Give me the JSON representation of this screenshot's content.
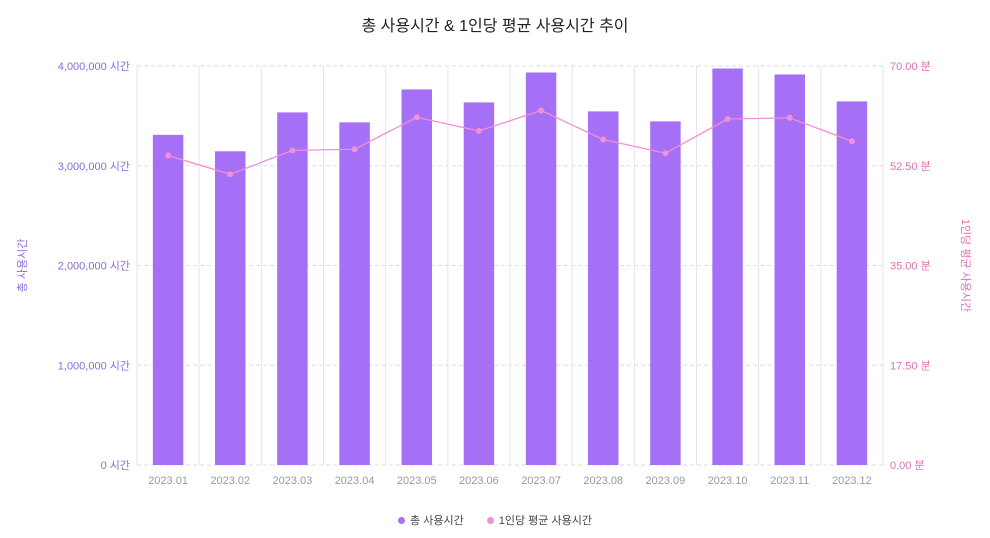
{
  "chart_data": {
    "type": "bar",
    "title": "총 사용시간 & 1인당 평균 사용시간 추이",
    "categories": [
      "2023.01",
      "2023.02",
      "2023.03",
      "2023.04",
      "2023.05",
      "2023.06",
      "2023.07",
      "2023.08",
      "2023.09",
      "2023.10",
      "2023.11",
      "2023.12"
    ],
    "series": [
      {
        "name": "총 사용시간",
        "type": "bar",
        "axis": "left",
        "color": "#a570f5",
        "values": [
          3310000,
          3145000,
          3535000,
          3435000,
          3765000,
          3635000,
          3935000,
          3545000,
          3445000,
          3975000,
          3915000,
          3645000
        ]
      },
      {
        "name": "1인당 평균 사용시간",
        "type": "line",
        "axis": "right",
        "color": "#f28fd6",
        "values": [
          54.3,
          51.0,
          55.2,
          55.4,
          61.0,
          58.6,
          62.2,
          57.1,
          54.7,
          60.7,
          60.9,
          56.8
        ]
      }
    ],
    "yleft": {
      "label": "총 사용시간",
      "ylim": [
        0,
        4000000
      ],
      "ticks": [
        "0 시간",
        "1,000,000 시간",
        "2,000,000 시간",
        "3,000,000 시간",
        "4,000,000 시간"
      ]
    },
    "yright": {
      "label": "1인당 평균 사용시간",
      "ylim": [
        0,
        70
      ],
      "ticks": [
        "0.00 분",
        "17.50 분",
        "35.00 분",
        "52.50 분",
        "70.00 분"
      ]
    },
    "grid": true,
    "legend_position": "bottom-center"
  },
  "colors": {
    "bar": "#a570f5",
    "line": "#f28fd6",
    "left_axis_text": "#8c6bd6",
    "right_axis_text": "#e070b8"
  }
}
